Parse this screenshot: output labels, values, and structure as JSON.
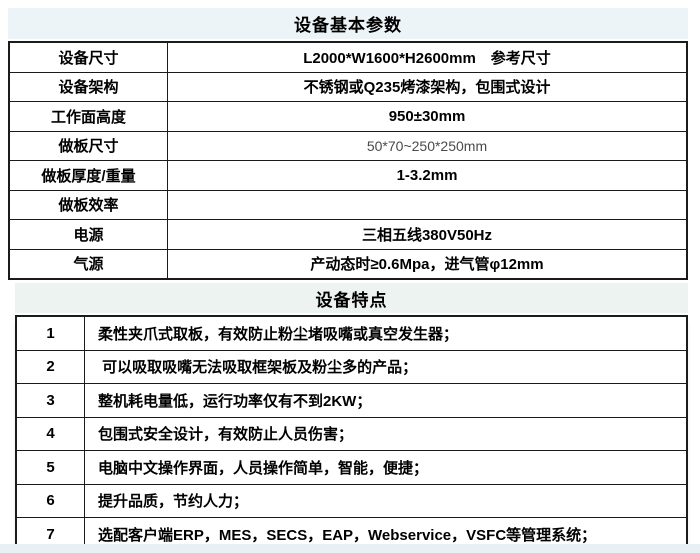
{
  "page": {
    "background": "#ffffff",
    "tint_color": "#edf4f8",
    "border_color": "#1b1b1b"
  },
  "spec_table": {
    "title": "设备基本参数",
    "rows": [
      {
        "label": "设备尺寸",
        "value": "L2000*W1600*H2600mm　参考尺寸",
        "muted": false
      },
      {
        "label": "设备架构",
        "value": "不锈钢或Q235烤漆架构，包围式设计",
        "muted": false
      },
      {
        "label": "工作面高度",
        "value": "950±30mm",
        "muted": false
      },
      {
        "label": "做板尺寸",
        "value": "50*70~250*250mm",
        "muted": true
      },
      {
        "label": "做板厚度/重量",
        "value": "1-3.2mm",
        "muted": false
      },
      {
        "label": "做板效率",
        "value": "",
        "muted": false
      },
      {
        "label": "电源",
        "value": "三相五线380V50Hz",
        "muted": false
      },
      {
        "label": "气源",
        "value": "产动态时≥0.6Mpa，进气管φ12mm",
        "muted": false
      }
    ]
  },
  "features_table": {
    "title": "设备特点",
    "rows": [
      {
        "num": "1",
        "text": "柔性夹爪式取板，有效防止粉尘堵吸嘴或真空发生器；"
      },
      {
        "num": "2",
        "text": " 可以吸取吸嘴无法吸取框架板及粉尘多的产品；"
      },
      {
        "num": "3",
        "text": "整机耗电量低，运行功率仅有不到2KW；"
      },
      {
        "num": "4",
        "text": "包围式安全设计，有效防止人员伤害；"
      },
      {
        "num": "5",
        "text": "电脑中文操作界面，人员操作简单，智能，便捷；"
      },
      {
        "num": "6",
        "text": "提升品质，节约人力；"
      },
      {
        "num": "7",
        "text": "选配客户端ERP，MES，SECS，EAP，Webservice，VSFC等管理系统；"
      }
    ]
  }
}
